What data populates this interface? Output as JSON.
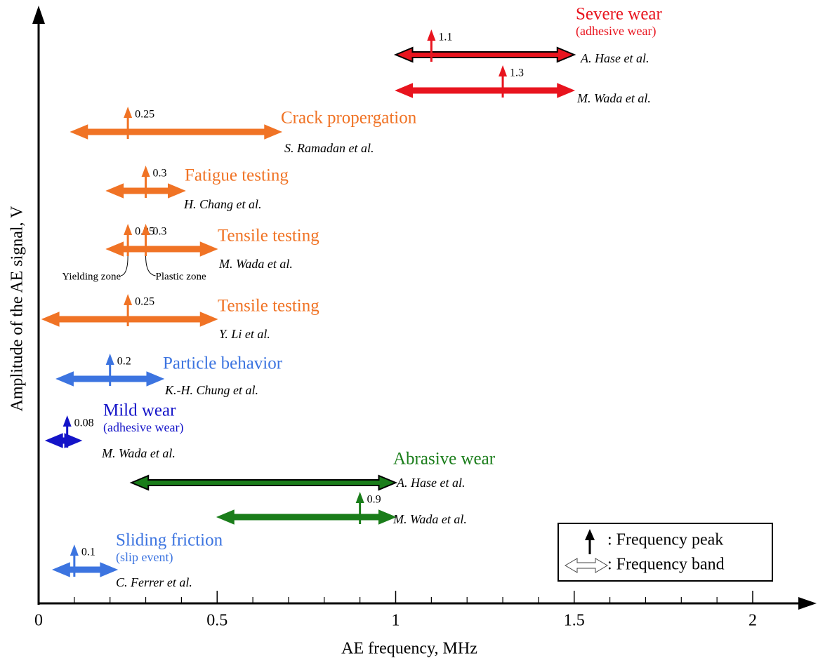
{
  "chart_data": {
    "type": "band",
    "xlabel": "AE frequency, MHz",
    "ylabel": "Amplitude of the AE signal, V",
    "xlim": [
      0,
      2.15
    ],
    "xticks": [
      0,
      0.5,
      1,
      1.5,
      2
    ],
    "xminor": [
      0.1,
      0.2,
      0.3,
      0.4,
      0.6,
      0.7,
      0.8,
      0.9,
      1.1,
      1.2,
      1.3,
      1.4,
      1.6,
      1.7,
      1.8,
      1.9
    ],
    "groups": [
      {
        "name": "Severe wear",
        "note": "(adhesive wear)",
        "color": "#e8141e",
        "studies": [
          {
            "author": "A. Hase et al.",
            "band": [
              1.0,
              1.5
            ],
            "peaks": [
              1.1
            ],
            "outline": "#000000"
          },
          {
            "author": "M. Wada et al.",
            "band": [
              1.0,
              1.5
            ],
            "peaks": [
              1.3
            ]
          }
        ]
      },
      {
        "name": "Crack propergation",
        "color": "#f07325",
        "studies": [
          {
            "author": "S. Ramadan et al.",
            "band": [
              0.09,
              0.68
            ],
            "peaks": [
              0.25
            ]
          }
        ]
      },
      {
        "name": "Fatigue testing",
        "color": "#f07325",
        "studies": [
          {
            "author": "H. Chang et al.",
            "band": [
              0.19,
              0.41
            ],
            "peaks": [
              0.3
            ]
          }
        ]
      },
      {
        "name": "Tensile testing",
        "color": "#f07325",
        "studies": [
          {
            "author": "M. Wada et al.",
            "band": [
              0.19,
              0.5
            ],
            "peaks": [
              0.25,
              0.3
            ],
            "peak_notes": [
              "Yielding zone",
              "Plastic zone"
            ]
          }
        ]
      },
      {
        "name": "Tensile testing",
        "color": "#f07325",
        "studies": [
          {
            "author": "Y. Li et al.",
            "band": [
              0.01,
              0.5
            ],
            "peaks": [
              0.25
            ]
          }
        ]
      },
      {
        "name": "Particle behavior",
        "color": "#3c74e0",
        "studies": [
          {
            "author": "K.-H. Chung et al.",
            "band": [
              0.05,
              0.35
            ],
            "peaks": [
              0.2
            ]
          }
        ]
      },
      {
        "name": "Mild wear",
        "note": "(adhesive wear)",
        "color": "#1414c8",
        "studies": [
          {
            "author": "M. Wada et al.",
            "band": [
              0.02,
              0.12
            ],
            "peaks": [
              0.08
            ]
          }
        ]
      },
      {
        "name": "Abrasive wear",
        "color": "#1a7d1a",
        "studies": [
          {
            "author": "A. Hase et al.",
            "band": [
              0.26,
              1.0
            ],
            "peaks": [],
            "outline": "#000000"
          },
          {
            "author": "M. Wada et al.",
            "band": [
              0.5,
              1.0
            ],
            "peaks": [
              0.9
            ]
          }
        ]
      },
      {
        "name": "Sliding friction",
        "note": "(slip event)",
        "color": "#3c74e0",
        "studies": [
          {
            "author": "C. Ferrer et al.",
            "band": [
              0.04,
              0.22
            ],
            "peaks": [
              0.1
            ]
          }
        ]
      }
    ],
    "legend": {
      "peak": ": Frequency peak",
      "band": ": Frequency band"
    }
  }
}
